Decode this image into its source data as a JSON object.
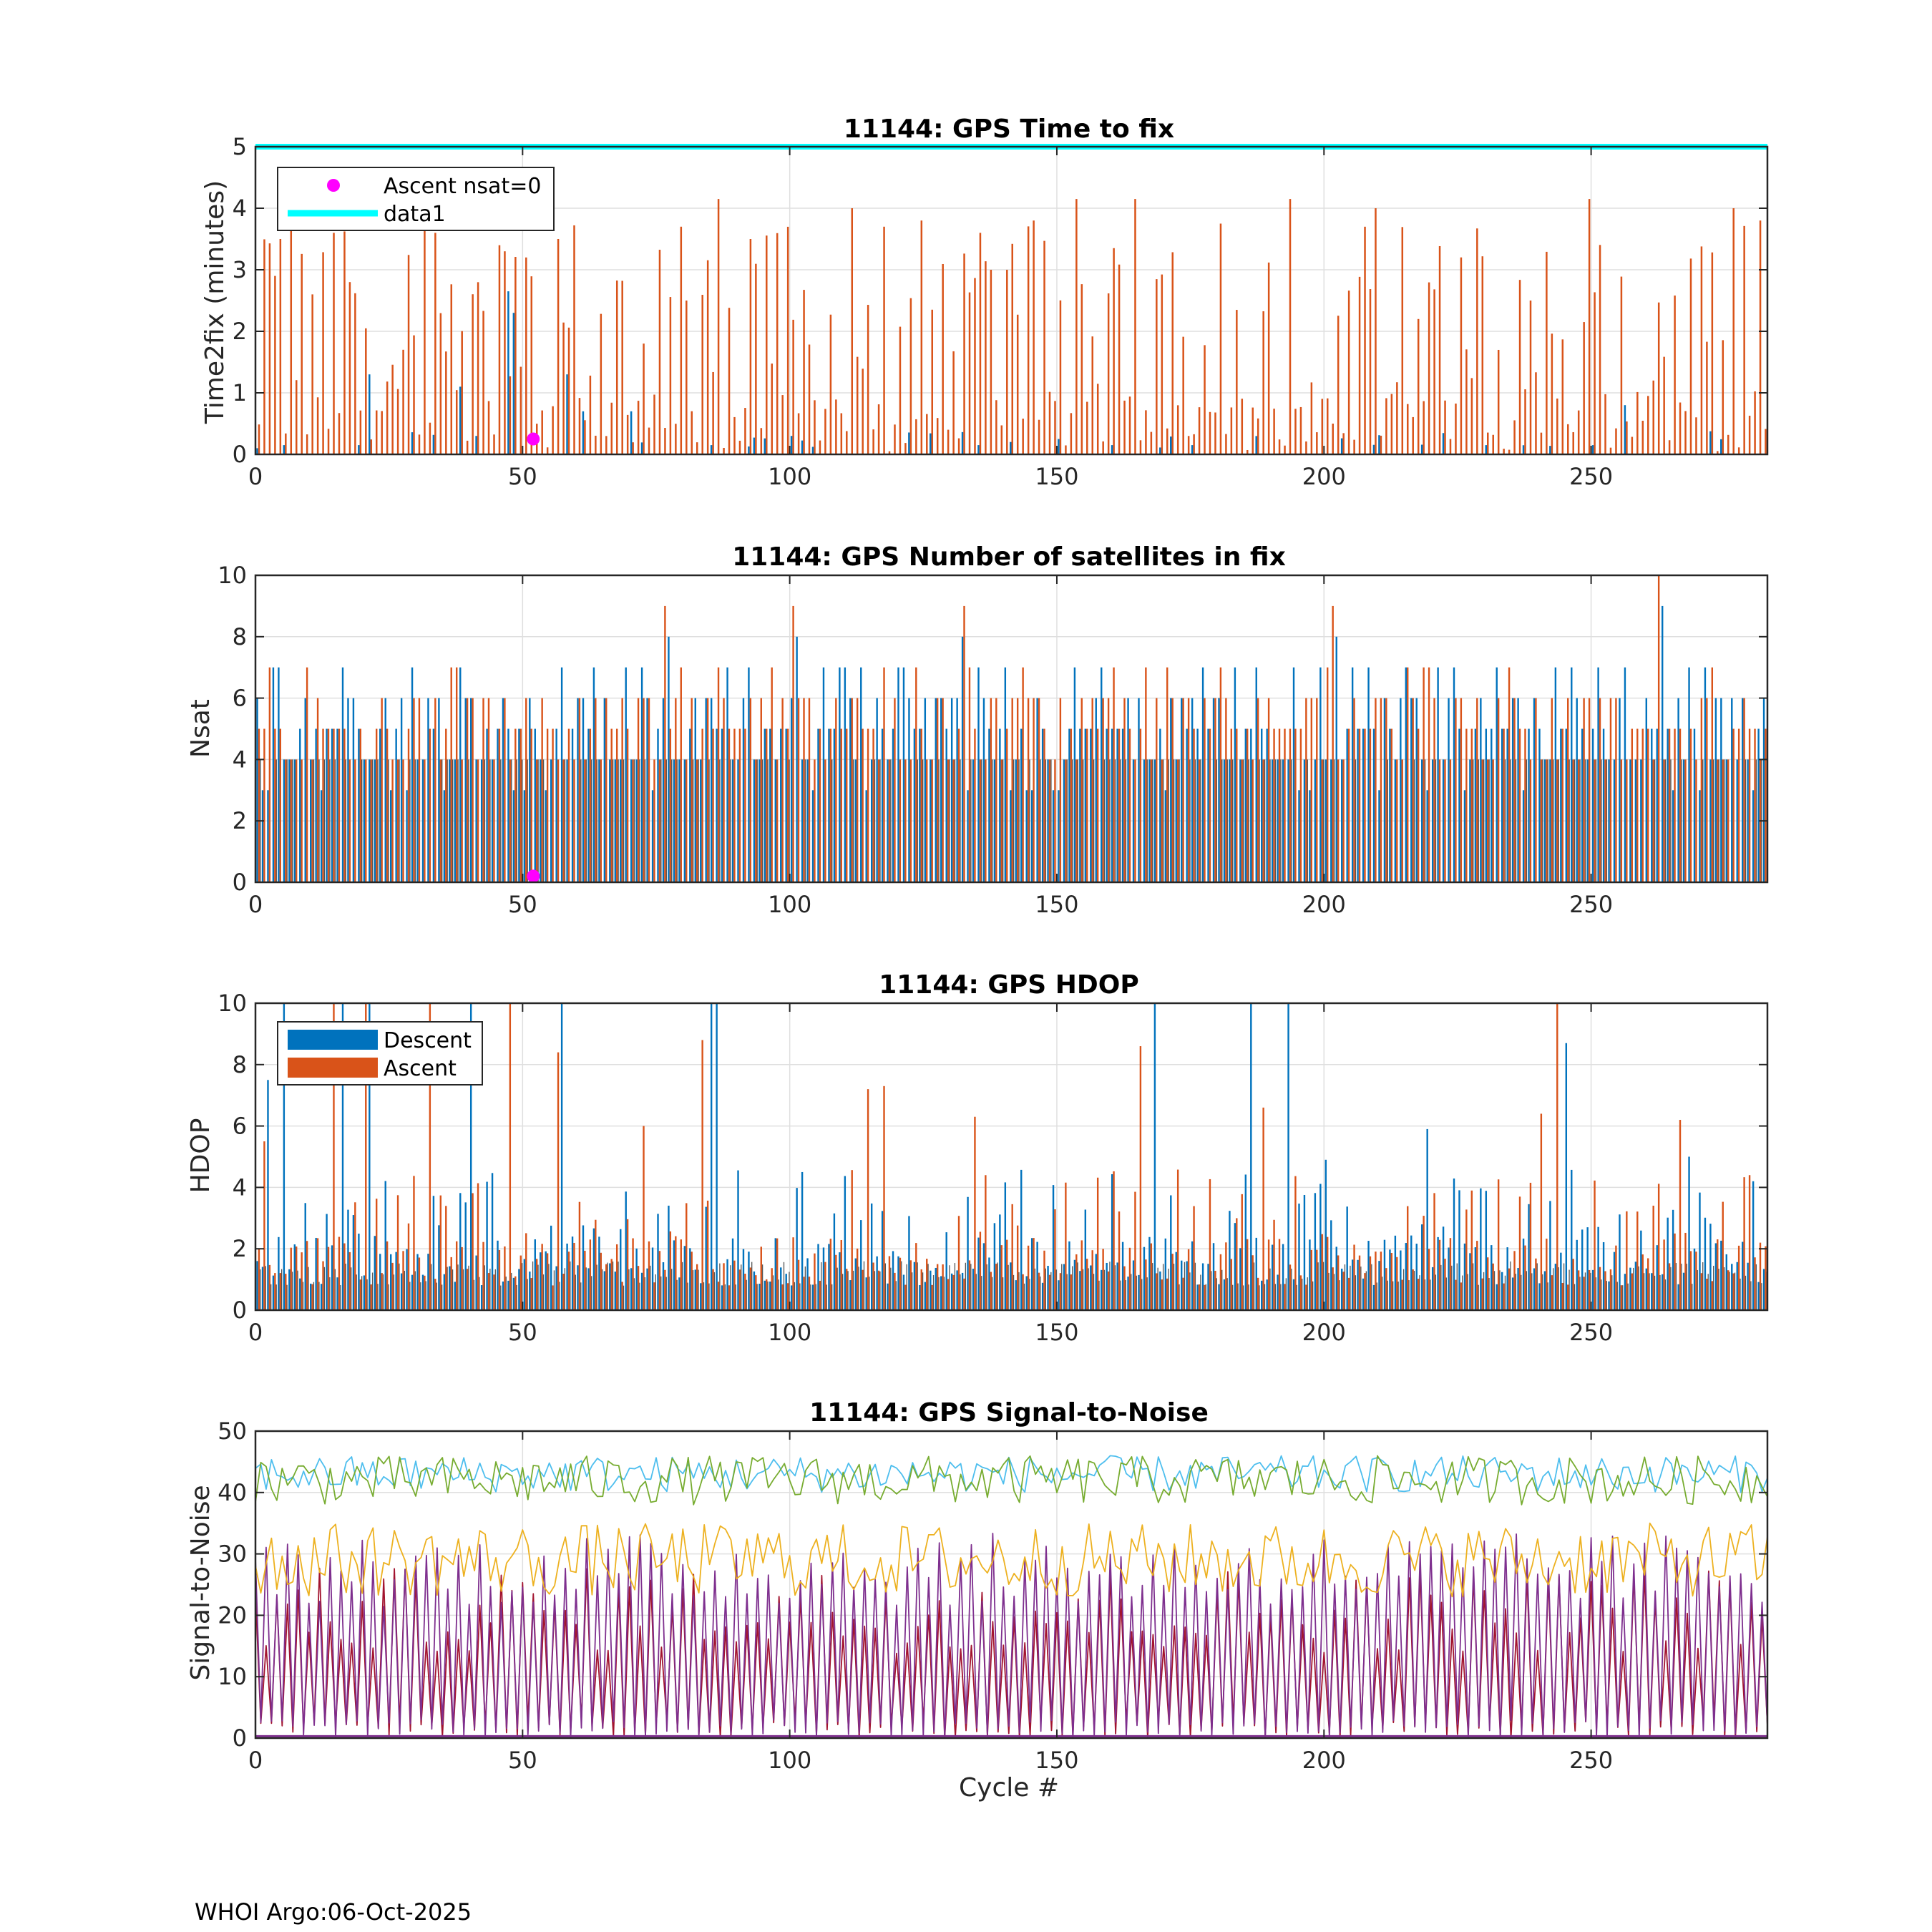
{
  "footer": "WHOI Argo:06-Oct-2025",
  "colors": {
    "descent": "#0072BD",
    "ascent": "#D95319",
    "ascent_nsat0": "#FF00FF",
    "data1": "#00FFFF",
    "snr_series": [
      "#4DBEEE",
      "#77AC30",
      "#EDB120",
      "#7E2F8E",
      "#A2142F",
      "#0072BD",
      "#D95319"
    ]
  },
  "chart_data": [
    {
      "type": "bar",
      "title": "11144: GPS Time to fix",
      "ylabel": "Time2fix (minutes)",
      "xlabel": "",
      "xlim": [
        0,
        283
      ],
      "ylim": [
        0,
        5
      ],
      "xticks": [
        0,
        50,
        100,
        150,
        200,
        250
      ],
      "yticks": [
        0,
        1,
        2,
        3,
        4,
        5
      ],
      "grid": true,
      "legend": {
        "placement": "top-left",
        "entries": [
          "Ascent nsat=0",
          "data1"
        ]
      },
      "data1_value": 5,
      "ascent_nsat0_points": [
        {
          "x": 52,
          "y": 0.25
        }
      ],
      "descent_sample": [
        {
          "x": 0,
          "y": 0.1
        },
        {
          "x": 5,
          "y": 0.15
        },
        {
          "x": 19,
          "y": 0.15
        },
        {
          "x": 21,
          "y": 1.3
        },
        {
          "x": 38,
          "y": 1.1
        },
        {
          "x": 41,
          "y": 0.3
        },
        {
          "x": 47,
          "y": 2.65
        },
        {
          "x": 48,
          "y": 2.3
        },
        {
          "x": 58,
          "y": 1.3
        },
        {
          "x": 61,
          "y": 0.7
        },
        {
          "x": 70,
          "y": 0.7
        },
        {
          "x": 85,
          "y": 0.15
        },
        {
          "x": 100,
          "y": 0.3
        },
        {
          "x": 135,
          "y": 0.15
        },
        {
          "x": 150,
          "y": 0.25
        },
        {
          "x": 160,
          "y": 0.15
        },
        {
          "x": 175,
          "y": 0.15
        },
        {
          "x": 230,
          "y": 0.15
        },
        {
          "x": 250,
          "y": 0.15
        },
        {
          "x": 256,
          "y": 0.8
        }
      ],
      "ascent_sample": [
        {
          "x": 3,
          "y": 2.9
        },
        {
          "x": 6,
          "y": 3.75
        },
        {
          "x": 10,
          "y": 2.6
        },
        {
          "x": 14,
          "y": 3.6
        },
        {
          "x": 17,
          "y": 2.8
        },
        {
          "x": 27,
          "y": 1.7
        },
        {
          "x": 31,
          "y": 3.75
        },
        {
          "x": 33,
          "y": 3.6
        },
        {
          "x": 46,
          "y": 3.3
        },
        {
          "x": 50,
          "y": 3.2
        },
        {
          "x": 56,
          "y": 3.5
        },
        {
          "x": 72,
          "y": 1.8
        },
        {
          "x": 80,
          "y": 2.5
        },
        {
          "x": 86,
          "y": 4.15
        },
        {
          "x": 92,
          "y": 3.5
        },
        {
          "x": 111,
          "y": 4.0
        },
        {
          "x": 117,
          "y": 3.7
        },
        {
          "x": 124,
          "y": 3.8
        },
        {
          "x": 137,
          "y": 3.0
        },
        {
          "x": 145,
          "y": 3.8
        },
        {
          "x": 153,
          "y": 4.15
        },
        {
          "x": 164,
          "y": 4.15
        },
        {
          "x": 180,
          "y": 3.75
        },
        {
          "x": 193,
          "y": 4.15
        },
        {
          "x": 201,
          "y": 0.5
        },
        {
          "x": 209,
          "y": 4.0
        },
        {
          "x": 217,
          "y": 2.2
        },
        {
          "x": 238,
          "y": 2.5
        },
        {
          "x": 249,
          "y": 4.15
        },
        {
          "x": 261,
          "y": 1.2
        },
        {
          "x": 276,
          "y": 4.0
        },
        {
          "x": 281,
          "y": 3.8
        }
      ]
    },
    {
      "type": "bar",
      "title": "11144: GPS Number of satellites in fix",
      "ylabel": "Nsat",
      "xlabel": "",
      "xlim": [
        0,
        283
      ],
      "ylim": [
        0,
        10
      ],
      "xticks": [
        0,
        50,
        100,
        150,
        200,
        250
      ],
      "yticks": [
        0,
        2,
        4,
        6,
        8,
        10
      ],
      "grid": true,
      "ascent_nsat0_points": [
        {
          "x": 52,
          "y": 0.2
        }
      ],
      "typical_range": [
        4,
        7
      ],
      "peaks": [
        {
          "x": 76,
          "series": "Ascent",
          "y": 9
        },
        {
          "x": 77,
          "series": "Descent",
          "y": 8
        },
        {
          "x": 100,
          "series": "Ascent",
          "y": 9
        },
        {
          "x": 101,
          "series": "Descent",
          "y": 8
        },
        {
          "x": 132,
          "series": "Ascent",
          "y": 9
        },
        {
          "x": 132,
          "series": "Descent",
          "y": 8
        },
        {
          "x": 201,
          "series": "Ascent",
          "y": 9
        },
        {
          "x": 202,
          "series": "Descent",
          "y": 8
        },
        {
          "x": 262,
          "series": "Ascent",
          "y": 10
        },
        {
          "x": 263,
          "series": "Descent",
          "y": 9
        }
      ]
    },
    {
      "type": "bar",
      "title": "11144: GPS HDOP",
      "ylabel": "HDOP",
      "xlabel": "",
      "xlim": [
        0,
        283
      ],
      "ylim": [
        0,
        10
      ],
      "xticks": [
        0,
        50,
        100,
        150,
        200,
        250
      ],
      "yticks": [
        0,
        2,
        4,
        6,
        8,
        10
      ],
      "grid": true,
      "legend": {
        "placement": "top-left",
        "entries": [
          "Descent",
          "Ascent"
        ]
      },
      "descent_sample": [
        {
          "x": 0,
          "y": 1.6
        },
        {
          "x": 2,
          "y": 7.5
        },
        {
          "x": 5,
          "y": 10
        },
        {
          "x": 16,
          "y": 10
        },
        {
          "x": 21,
          "y": 10
        },
        {
          "x": 40,
          "y": 10
        },
        {
          "x": 57,
          "y": 10
        },
        {
          "x": 85,
          "y": 10
        },
        {
          "x": 86,
          "y": 10
        },
        {
          "x": 102,
          "y": 4.5
        },
        {
          "x": 168,
          "y": 10
        },
        {
          "x": 186,
          "y": 10
        },
        {
          "x": 193,
          "y": 10
        },
        {
          "x": 200,
          "y": 4.9
        },
        {
          "x": 219,
          "y": 5.9
        },
        {
          "x": 245,
          "y": 8.7
        },
        {
          "x": 268,
          "y": 5.0
        },
        {
          "x": 280,
          "y": 4.2
        }
      ],
      "ascent_sample": [
        {
          "x": 1,
          "y": 5.5
        },
        {
          "x": 14,
          "y": 10
        },
        {
          "x": 20,
          "y": 10
        },
        {
          "x": 32,
          "y": 10
        },
        {
          "x": 47,
          "y": 10
        },
        {
          "x": 56,
          "y": 8.4
        },
        {
          "x": 72,
          "y": 6.0
        },
        {
          "x": 83,
          "y": 8.8
        },
        {
          "x": 114,
          "y": 7.2
        },
        {
          "x": 117,
          "y": 7.3
        },
        {
          "x": 134,
          "y": 6.3
        },
        {
          "x": 165,
          "y": 8.6
        },
        {
          "x": 188,
          "y": 6.6
        },
        {
          "x": 240,
          "y": 6.4
        },
        {
          "x": 243,
          "y": 10
        },
        {
          "x": 266,
          "y": 6.2
        },
        {
          "x": 279,
          "y": 4.4
        }
      ]
    },
    {
      "type": "line",
      "title": "11144: GPS Signal-to-Noise",
      "ylabel": "Signal-to-Noise",
      "xlabel": "Cycle #",
      "xlim": [
        0,
        283
      ],
      "ylim": [
        0,
        50
      ],
      "xticks": [
        0,
        50,
        100,
        150,
        200,
        250
      ],
      "yticks": [
        0,
        10,
        20,
        30,
        40,
        50
      ],
      "grid": true,
      "series_levels": [
        {
          "rank": 1,
          "typical": 43,
          "spread": 3
        },
        {
          "rank": 2,
          "typical": 42,
          "spread": 4
        },
        {
          "rank": 3,
          "typical": 29,
          "spread": 6
        },
        {
          "rank": 4,
          "typical": 25,
          "spread": 12
        },
        {
          "rank": 5,
          "typical": 18,
          "spread": 14
        }
      ]
    }
  ]
}
